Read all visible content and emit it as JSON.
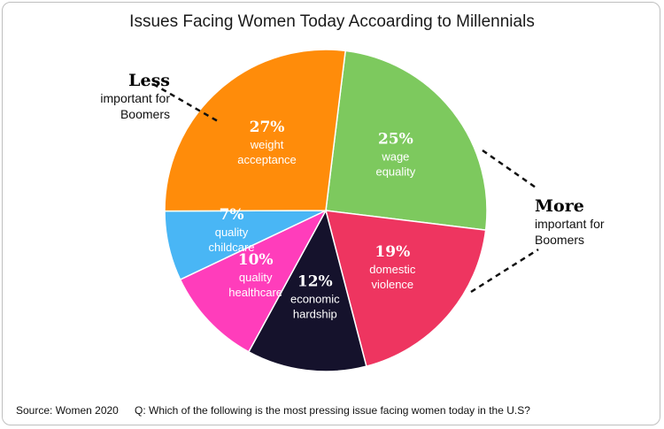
{
  "chart_data": {
    "type": "pie",
    "title": "Issues Facing Women Today Accoarding to Millennials",
    "slices": [
      {
        "label": "25%",
        "name_line1": "wage",
        "name_line2": "equality",
        "value": 25,
        "color": "#7dc95e"
      },
      {
        "label": "19%",
        "name_line1": "domestic",
        "name_line2": "violence",
        "value": 19,
        "color": "#ee3560"
      },
      {
        "label": "12%",
        "name_line1": "economic",
        "name_line2": "hardship",
        "value": 12,
        "color": "#15122c"
      },
      {
        "label": "10%",
        "name_line1": "quality",
        "name_line2": "healthcare",
        "value": 10,
        "color": "#ff3dbb"
      },
      {
        "label": "7%",
        "name_line1": "quality",
        "name_line2": "childcare",
        "value": 7,
        "color": "#49b6f5"
      },
      {
        "label": "27%",
        "name_line1": "weight",
        "name_line2": "acceptance",
        "value": 27,
        "color": "#ff8c0a"
      }
    ],
    "slice_order": "clockwise",
    "start_direction": "top, slightly right"
  },
  "annotations": {
    "less_heading": "Less",
    "less_text_line1": "important for",
    "less_text_line2": "Boomers",
    "more_heading": "More",
    "more_text_line1": "important for",
    "more_text_line2": "Boomers"
  },
  "footer": {
    "source": "Source: Women 2020",
    "question": "Q: Which of the following is the most pressing issue facing women today in the U.S?"
  }
}
